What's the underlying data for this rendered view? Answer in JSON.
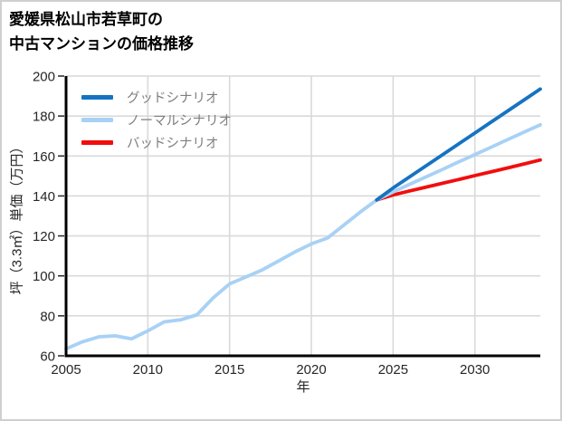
{
  "title": {
    "line1": "愛媛県松山市若草町の",
    "line2": "中古マンションの価格推移"
  },
  "chart_data": {
    "type": "line",
    "title": "愛媛県松山市若草町の中古マンションの価格推移",
    "x_label": "年",
    "y_label": "坪（3.3㎡）単価（万円）",
    "x_range": [
      2005,
      2034
    ],
    "y_range": [
      60,
      200
    ],
    "x_ticks": [
      2005,
      2010,
      2015,
      2020,
      2025,
      2030
    ],
    "y_ticks": [
      60,
      80,
      100,
      120,
      140,
      160,
      180,
      200
    ],
    "grid": true,
    "legend_position": "top-left-inside",
    "colors": {
      "good": "#1673c1",
      "normal": "#a8d1f5",
      "bad": "#f20d0d",
      "gridline": "#d9d9d9",
      "axis": "#000000",
      "tick_text": "#262626",
      "legend_text": "#7f7f7f"
    },
    "series": [
      {
        "label": "グッドシナリオ",
        "color": "#1673c1",
        "in_legend": true,
        "x": [
          2024,
          2025,
          2026,
          2027,
          2028,
          2029,
          2030,
          2031,
          2032,
          2033,
          2034
        ],
        "values": [
          138,
          144,
          149.5,
          155,
          160.5,
          166,
          171.5,
          177,
          182.5,
          188,
          193.5
        ]
      },
      {
        "label": "ノーマルシナリオ",
        "color": "#a8d1f5",
        "in_legend": true,
        "x": [
          2024,
          2025,
          2026,
          2027,
          2028,
          2029,
          2030,
          2031,
          2032,
          2033,
          2034
        ],
        "values": [
          138,
          142,
          145.8,
          149.5,
          153.2,
          157,
          160.7,
          164.4,
          168.2,
          171.9,
          175.6
        ]
      },
      {
        "label": "バッドシナリオ",
        "color": "#f20d0d",
        "in_legend": true,
        "x": [
          2024,
          2025,
          2026,
          2027,
          2028,
          2029,
          2030,
          2031,
          2032,
          2033,
          2034
        ],
        "values": [
          138,
          140.5,
          142.5,
          144.4,
          146.3,
          148.2,
          150.2,
          152.1,
          154,
          156,
          158
        ]
      },
      {
        "label": "",
        "color": "#a8d1f5",
        "in_legend": false,
        "x": [
          2005,
          2006,
          2007,
          2008,
          2009,
          2010,
          2011,
          2012,
          2013,
          2014,
          2015,
          2016,
          2017,
          2018,
          2019,
          2020,
          2021,
          2022,
          2023,
          2024
        ],
        "values": [
          63.5,
          67,
          69.5,
          70,
          68.5,
          72.5,
          77,
          78,
          80.5,
          89,
          96,
          99.5,
          103,
          107.5,
          112,
          116,
          119,
          125.5,
          132,
          138
        ]
      }
    ]
  }
}
